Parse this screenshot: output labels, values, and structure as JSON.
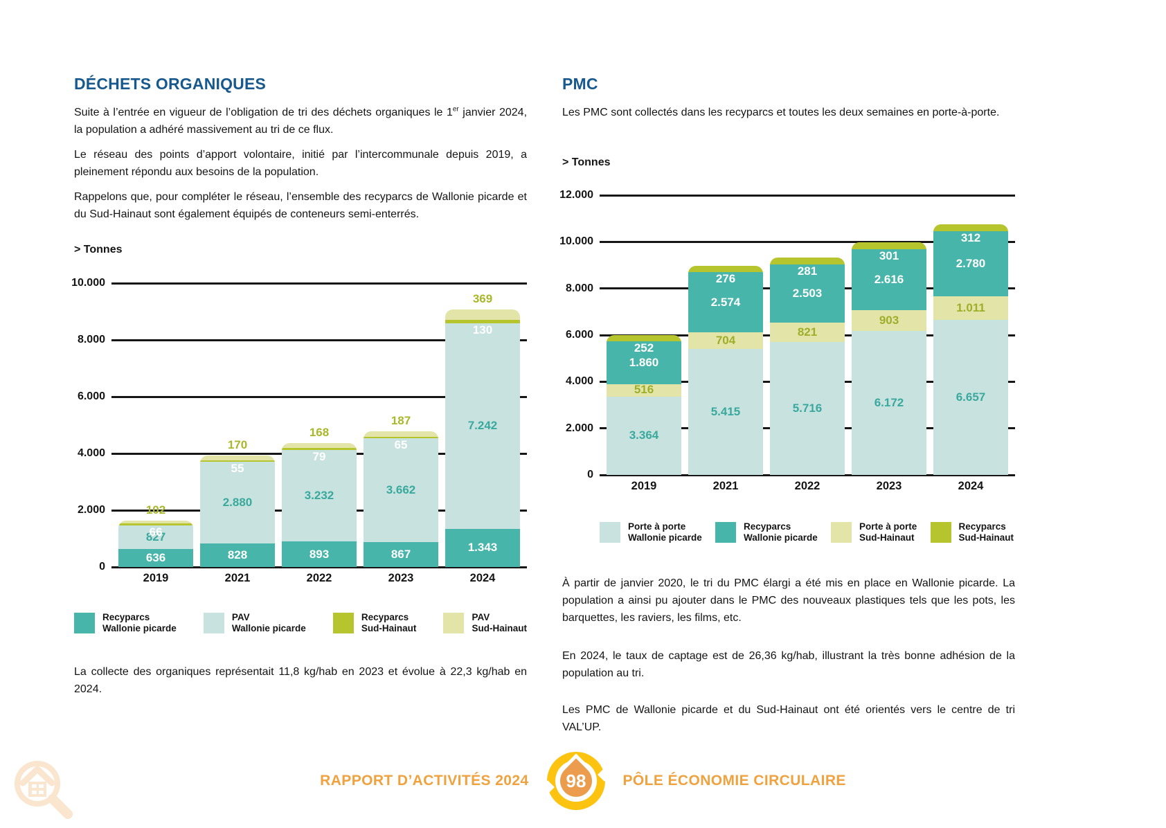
{
  "left": {
    "title": "DÉCHETS ORGANIQUES",
    "p1_prefix": "Suite à l’entrée en vigueur de l’obligation de tri des déchets organiques le 1",
    "p1_sup": "er",
    "p1_rest": " janvier 2024, la population a adhéré massivement au tri de ce flux.",
    "p2": "Le réseau des points d’apport volontaire, initié par l’intercommunale depuis 2019, a pleinement répondu aux besoins de la population.",
    "p3": "Rappelons que, pour compléter le réseau, l’ensemble des recyparcs de Wallonie picarde et du Sud-Hainaut sont également équipés de conteneurs semi-enterrés.",
    "note": "La collecte des organiques représentait 11,8 kg/hab en 2023 et évolue à 22,3 kg/hab en 2024."
  },
  "right": {
    "title": "PMC",
    "p1": "Les PMC sont collectés dans les recyparcs et toutes les deux semaines en porte-à-porte.",
    "p2": "À partir de janvier 2020, le tri du PMC élargi a été mis en place en Wallonie picarde. La population a ainsi pu ajouter dans le PMC des nouveaux plastiques tels que les pots, les barquettes, les raviers, les films, etc.",
    "p3": "En 2024, le taux de captage est de 26,36 kg/hab, illustrant la très bonne adhésion de la population au tri.",
    "p4": "Les PMC de Wallonie picarde et du Sud-Hainaut ont été orientés vers le centre de tri VAL’UP."
  },
  "footer": {
    "report": "RAPPORT D’ACTIVITÉS 2024",
    "page": "98",
    "section": "PÔLE ÉCONOMIE CIRCULAIRE"
  },
  "colors": {
    "heading_blue": "#17598e",
    "teal_dark": "#47b5a9",
    "teal_light": "#c8e2df",
    "olive": "#b6c52d",
    "pale_yellow": "#e2e5a7",
    "footer_orange": "#f0a23f",
    "badge_yellow": "#fcc411",
    "badge_drop": "#eb9d4d",
    "watermark_peach": "#fae5cf"
  },
  "chart_data": [
    {
      "type": "bar",
      "subtype": "stacked",
      "title": "> Tonnes",
      "unit": "Tonnes",
      "categories": [
        "2019",
        "2021",
        "2022",
        "2023",
        "2024"
      ],
      "ylim": [
        0,
        10000
      ],
      "grid": true,
      "legend_position": "bottom",
      "yticks": [
        {
          "label": "10.000",
          "value": 10000
        },
        {
          "label": "8.000",
          "value": 8000
        },
        {
          "label": "6.000",
          "value": 6000
        },
        {
          "label": "4.000",
          "value": 4000
        },
        {
          "label": "2.000",
          "value": 2000
        },
        {
          "label": "0",
          "value": 0
        }
      ],
      "series": [
        {
          "name": "Recyparcs Wallonie picarde",
          "color": "#47b5a9",
          "values": [
            636,
            828,
            893,
            867,
            1343
          ],
          "labels": [
            "636",
            "828",
            "893",
            "867",
            "1.343"
          ],
          "label_color": "#ffffff",
          "label_pos": "center"
        },
        {
          "name": "PAV Wallonie picarde",
          "color": "#c8e2df",
          "values": [
            827,
            2880,
            3232,
            3662,
            7242
          ],
          "labels": [
            "827",
            "2.880",
            "3.232",
            "3.662",
            "7.242"
          ],
          "label_color": "#3aa99d",
          "label_pos": "center"
        },
        {
          "name": "Recyparcs Sud-Hainaut",
          "color": "#b6c52d",
          "values": [
            66,
            55,
            79,
            65,
            130
          ],
          "labels": [
            "66",
            "55",
            "79",
            "65",
            "130"
          ],
          "label_color": "#ffffff",
          "label_pos": "below"
        },
        {
          "name": "PAV Sud-Hainaut",
          "color": "#e2e5a7",
          "values": [
            102,
            170,
            168,
            187,
            369
          ],
          "labels": [
            "102",
            "170",
            "168",
            "187",
            "369"
          ],
          "label_color": "#a9b72a",
          "label_pos": "above"
        }
      ],
      "legend": [
        {
          "line1": "Recyparcs",
          "line2": "Wallonie picarde",
          "color": "#47b5a9"
        },
        {
          "line1": "PAV",
          "line2": "Wallonie picarde",
          "color": "#c8e2df"
        },
        {
          "line1": "Recyparcs",
          "line2": "Sud-Hainaut",
          "color": "#b6c52d"
        },
        {
          "line1": "PAV",
          "line2": "Sud-Hainaut",
          "color": "#e2e5a7"
        }
      ]
    },
    {
      "type": "bar",
      "subtype": "stacked",
      "title": "> Tonnes",
      "unit": "Tonnes",
      "categories": [
        "2019",
        "2021",
        "2022",
        "2023",
        "2024"
      ],
      "ylim": [
        0,
        12000
      ],
      "grid": true,
      "legend_position": "bottom",
      "yticks": [
        {
          "label": "12.000",
          "value": 12000
        },
        {
          "label": "10.000",
          "value": 10000
        },
        {
          "label": "8.000",
          "value": 8000
        },
        {
          "label": "6.000",
          "value": 6000
        },
        {
          "label": "4.000",
          "value": 4000
        },
        {
          "label": "2.000",
          "value": 2000
        },
        {
          "label": "0",
          "value": 0
        }
      ],
      "series": [
        {
          "name": "Porte à porte Wallonie picarde",
          "color": "#c8e2df",
          "values": [
            3364,
            5415,
            5716,
            6172,
            6657
          ],
          "labels": [
            "3.364",
            "5.415",
            "5.716",
            "6.172",
            "6.657"
          ],
          "label_color": "#3aa99d",
          "label_pos": "center"
        },
        {
          "name": "Porte à porte Sud-Hainaut",
          "color": "#e2e5a7",
          "values": [
            516,
            704,
            821,
            903,
            1011
          ],
          "labels": [
            "516",
            "704",
            "821",
            "903",
            "1.011"
          ],
          "label_color": "#9fae2a",
          "label_pos": "center"
        },
        {
          "name": "Recyparcs Wallonie picarde",
          "color": "#47b5a9",
          "values": [
            1860,
            2574,
            2503,
            2616,
            2780
          ],
          "labels": [
            "1.860",
            "2.574",
            "2.503",
            "2.616",
            "2.780"
          ],
          "label_color": "#ffffff",
          "label_pos": "center"
        },
        {
          "name": "Recyparcs Sud-Hainaut",
          "color": "#b6c52d",
          "values": [
            252,
            276,
            281,
            301,
            312
          ],
          "labels": [
            "252",
            "276",
            "281",
            "301",
            "312"
          ],
          "label_color": "#ffffff",
          "label_pos": "below"
        }
      ],
      "legend": [
        {
          "line1": "Porte à porte",
          "line2": "Wallonie picarde",
          "color": "#c8e2df"
        },
        {
          "line1": "Recyparcs",
          "line2": "Wallonie picarde",
          "color": "#47b5a9"
        },
        {
          "line1": "Porte à porte",
          "line2": "Sud-Hainaut",
          "color": "#e2e5a7"
        },
        {
          "line1": "Recyparcs",
          "line2": "Sud-Hainaut",
          "color": "#b6c52d"
        }
      ]
    }
  ]
}
